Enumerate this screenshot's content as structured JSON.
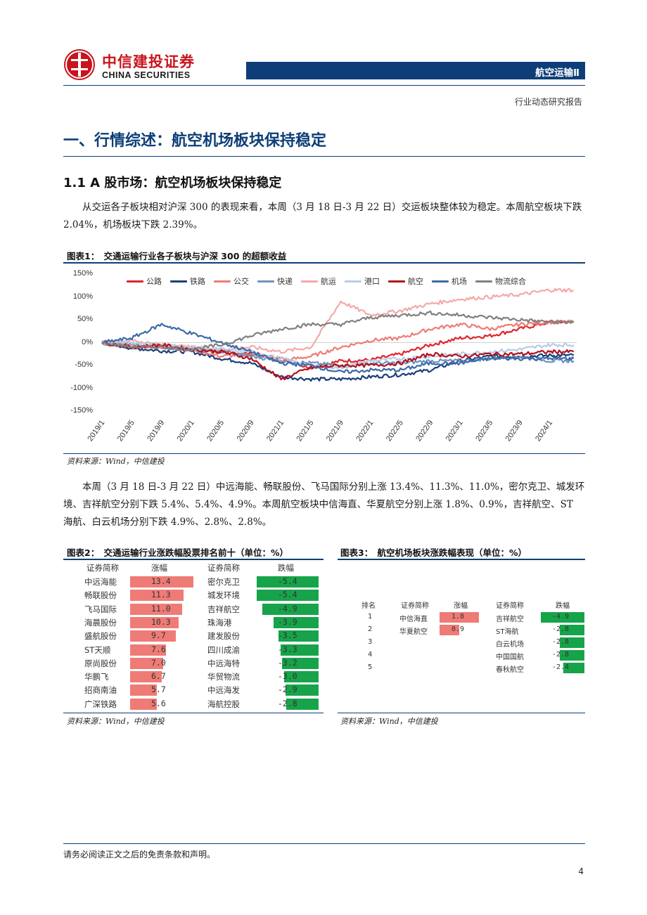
{
  "header": {
    "logo_cn": "中信建投证券",
    "logo_en": "CHINA SECURITIES",
    "sector": "航空运输Ⅱ",
    "report_type": "行业动态研究报告"
  },
  "section_title": "一、行情综述：航空机场板块保持稳定",
  "subsection_title": "1.1 A 股市场：航空机场板块保持稳定",
  "para1": "从交运各子板块相对沪深 300 的表现来看，本周（3 月 18 日-3 月 22 日）交运板块整体较为稳定。本周航空板块下跌 2.04%，机场板块下跌 2.39%。",
  "fig1": {
    "title": "图表1：　交通运输行业各子板块与沪深 300 的超额收益",
    "source": "资料来源：Wind，中信建投"
  },
  "chart_data": {
    "type": "line",
    "ylim": [
      -150,
      150
    ],
    "yticks": [
      "150%",
      "100%",
      "50%",
      "0%",
      "-50%",
      "-100%",
      "-150%"
    ],
    "xticks": [
      "2019/1",
      "2019/5",
      "2019/9",
      "2020/1",
      "2020/5",
      "2020/9",
      "2021/1",
      "2021/5",
      "2021/9",
      "2022/1",
      "2022/5",
      "2022/9",
      "2023/1",
      "2023/5",
      "2023/9",
      "2024/1"
    ],
    "legend_position": "top",
    "series": [
      {
        "name": "公路",
        "color": "#e0242b",
        "values": [
          0,
          -10,
          -8,
          -12,
          -20,
          -25,
          -35,
          -55,
          -40,
          -38,
          -25,
          -5,
          10,
          15,
          30,
          45
        ]
      },
      {
        "name": "铁路",
        "color": "#1b3f7a",
        "values": [
          0,
          -12,
          -18,
          -20,
          -35,
          -45,
          -75,
          -80,
          -80,
          -75,
          -70,
          -60,
          -40,
          -30,
          -30,
          -28
        ]
      },
      {
        "name": "公交",
        "color": "#ef7b76",
        "values": [
          0,
          -5,
          -10,
          -15,
          -30,
          -25,
          -40,
          -30,
          -10,
          5,
          10,
          30,
          40,
          30,
          40,
          45
        ]
      },
      {
        "name": "快递",
        "color": "#6f93c1",
        "values": [
          0,
          -5,
          -10,
          -15,
          -20,
          -30,
          -40,
          -45,
          -50,
          -45,
          -45,
          -40,
          -40,
          -35,
          -30,
          -40
        ]
      },
      {
        "name": "航运",
        "color": "#f4a9a8",
        "values": [
          0,
          5,
          -5,
          -10,
          -15,
          -10,
          -20,
          -10,
          90,
          60,
          70,
          85,
          95,
          100,
          105,
          115
        ]
      },
      {
        "name": "港口",
        "color": "#b9cce6",
        "values": [
          0,
          0,
          -5,
          -10,
          -15,
          -20,
          -35,
          -50,
          -55,
          -40,
          -35,
          -30,
          -25,
          -20,
          -15,
          -5
        ]
      },
      {
        "name": "航空",
        "color": "#b3121b",
        "values": [
          0,
          -10,
          -5,
          -15,
          -20,
          -35,
          -80,
          -55,
          -50,
          -50,
          -45,
          -25,
          -30,
          -25,
          -25,
          -20
        ]
      },
      {
        "name": "机场",
        "color": "#3a6aa8",
        "values": [
          0,
          10,
          40,
          20,
          0,
          -20,
          -45,
          -50,
          -65,
          -60,
          -60,
          -45,
          -45,
          -35,
          -35,
          -35
        ]
      },
      {
        "name": "物流综合",
        "color": "#808080",
        "values": [
          0,
          -10,
          -10,
          -15,
          -5,
          15,
          30,
          40,
          40,
          55,
          60,
          65,
          60,
          55,
          50,
          45
        ]
      }
    ]
  },
  "para2": "本周（3 月 18 日-3 月 22 日）中远海能、畅联股份、飞马国际分别上涨 13.4%、11.3%、11.0%，密尔克卫、城发环境、吉祥航空分别下跌 5.4%、5.4%、4.9%。本周航空板块中信海直、华夏航空分别上涨 1.8%、0.9%，吉祥航空、ST 海航、白云机场分别下跌 4.9%、2.8%、2.8%。",
  "fig2": {
    "title": "图表2：　交通运输行业涨跌幅股票排名前十（单位：%）",
    "source": "资料来源：Wind，中信建投",
    "headers": [
      "证券简称",
      "涨幅",
      "证券简称",
      "跌幅"
    ],
    "up_color": "#ef7b76",
    "down_color": "#17a34a",
    "rows": [
      {
        "up_name": "中远海能",
        "up_val": "13.4",
        "up": 13.4,
        "dn_name": "密尔克卫",
        "dn_val": "-5.4",
        "dn": 5.4
      },
      {
        "up_name": "畅联股份",
        "up_val": "11.3",
        "up": 11.3,
        "dn_name": "城发环境",
        "dn_val": "-5.4",
        "dn": 5.4
      },
      {
        "up_name": "飞马国际",
        "up_val": "11.0",
        "up": 11.0,
        "dn_name": "吉祥航空",
        "dn_val": "-4.9",
        "dn": 4.9
      },
      {
        "up_name": "海晨股份",
        "up_val": "10.3",
        "up": 10.3,
        "dn_name": "珠海港",
        "dn_val": "-3.9",
        "dn": 3.9
      },
      {
        "up_name": "盛航股份",
        "up_val": "9.7",
        "up": 9.7,
        "dn_name": "建发股份",
        "dn_val": "-3.5",
        "dn": 3.5
      },
      {
        "up_name": "ST天顺",
        "up_val": "7.6",
        "up": 7.6,
        "dn_name": "四川成渝",
        "dn_val": "-3.3",
        "dn": 3.3
      },
      {
        "up_name": "原尚股份",
        "up_val": "7.0",
        "up": 7.0,
        "dn_name": "中远海特",
        "dn_val": "-3.2",
        "dn": 3.2
      },
      {
        "up_name": "华鹏飞",
        "up_val": "6.7",
        "up": 6.7,
        "dn_name": "华贸物流",
        "dn_val": "-3.0",
        "dn": 3.0
      },
      {
        "up_name": "招商南油",
        "up_val": "5.7",
        "up": 5.7,
        "dn_name": "中远海发",
        "dn_val": "-2.9",
        "dn": 2.9
      },
      {
        "up_name": "广深铁路",
        "up_val": "5.6",
        "up": 5.6,
        "dn_name": "海航控股",
        "dn_val": "-2.8",
        "dn": 2.8
      }
    ]
  },
  "fig3": {
    "title": "图表3：　航空机场板块涨跌幅表现（单位：%）",
    "source": "资料来源：Wind，中信建投",
    "headers": [
      "排名",
      "证券简称",
      "涨幅",
      "证券简称",
      "跌幅"
    ],
    "rows": [
      {
        "rank": "1",
        "up_name": "中信海直",
        "up_val": "1.8",
        "up": 1.8,
        "dn_name": "吉祥航空",
        "dn_val": "-4.9",
        "dn": 4.9
      },
      {
        "rank": "2",
        "up_name": "华夏航空",
        "up_val": "0.9",
        "up": 0.9,
        "dn_name": "ST海航",
        "dn_val": "-2.8",
        "dn": 2.8
      },
      {
        "rank": "3",
        "up_name": "",
        "up_val": "",
        "up": 0,
        "dn_name": "白云机场",
        "dn_val": "-2.8",
        "dn": 2.8
      },
      {
        "rank": "4",
        "up_name": "",
        "up_val": "",
        "up": 0,
        "dn_name": "中国国航",
        "dn_val": "-2.8",
        "dn": 2.8
      },
      {
        "rank": "5",
        "up_name": "",
        "up_val": "",
        "up": 0,
        "dn_name": "春秋航空",
        "dn_val": "-2.4",
        "dn": 2.4
      }
    ]
  },
  "footer": {
    "disclaimer": "请务必阅读正文之后的免责条款和声明。",
    "page": "4"
  }
}
